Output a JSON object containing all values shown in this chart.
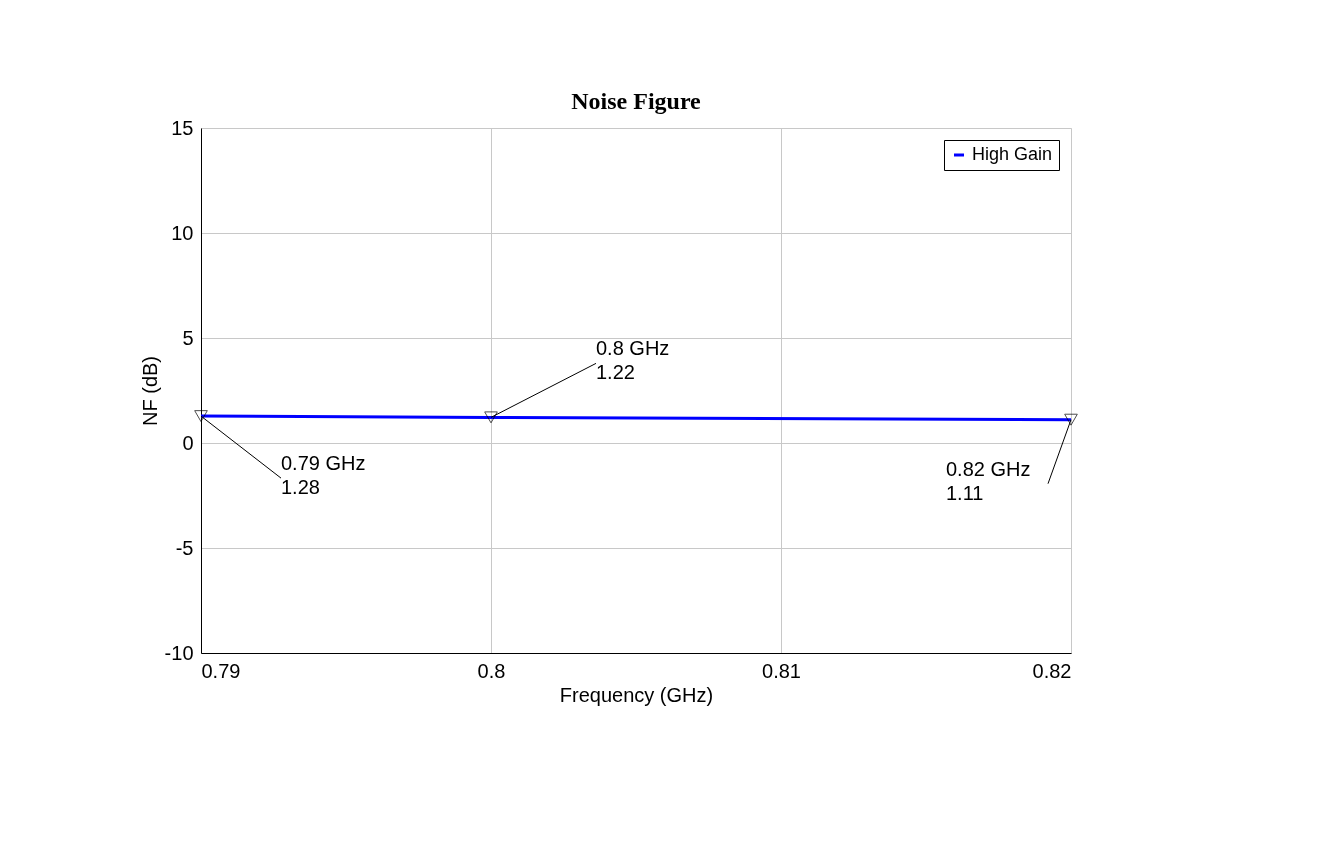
{
  "chart_data": {
    "type": "line",
    "title": "Noise Figure",
    "xlabel": "Frequency (GHz)",
    "ylabel": "NF (dB)",
    "x": [
      0.79,
      0.8,
      0.82
    ],
    "series": [
      {
        "name": "High Gain",
        "color": "#0000ff",
        "values": [
          1.28,
          1.22,
          1.11
        ]
      }
    ],
    "xlim": [
      0.79,
      0.82
    ],
    "xticks": [
      0.79,
      0.8,
      0.81,
      0.82
    ],
    "ylim": [
      -10,
      15
    ],
    "yticks": [
      -10,
      -5,
      0,
      5,
      10,
      15
    ],
    "grid": true,
    "legend": "top right",
    "marker": "triangle",
    "line_style": "solid",
    "annotations": [
      {
        "text": "0.79 GHz\n1.28",
        "x": 0.79,
        "y": 1.28
      },
      {
        "text": "0.8 GHz\n1.22",
        "x": 0.8,
        "y": 1.22
      },
      {
        "text": "0.82 GHz\n1.11",
        "x": 0.82,
        "y": 1.11
      }
    ]
  }
}
